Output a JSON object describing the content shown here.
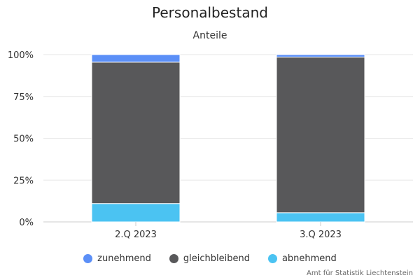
{
  "chart_data": {
    "type": "bar",
    "stacked": true,
    "title": "Personalbestand",
    "subtitle": "Anteile",
    "categories": [
      "2.Q 2023",
      "3.Q 2023"
    ],
    "y_ticks": [
      "0%",
      "25%",
      "50%",
      "75%",
      "100%"
    ],
    "ylim": [
      0,
      100
    ],
    "grid": true,
    "legend_position": "bottom-center",
    "series": [
      {
        "name": "abnehmend",
        "color": "#4bc3f2",
        "values": [
          11,
          5.5
        ]
      },
      {
        "name": "gleichbleibend",
        "color": "#58585a",
        "values": [
          84.5,
          93
        ]
      },
      {
        "name": "zunehmend",
        "color": "#5b8ff7",
        "values": [
          4.5,
          1.5
        ]
      }
    ],
    "legend_order": [
      "zunehmend",
      "gleichbleibend",
      "abnehmend"
    ]
  },
  "credit": "Amt für Statistik Liechtenstein"
}
